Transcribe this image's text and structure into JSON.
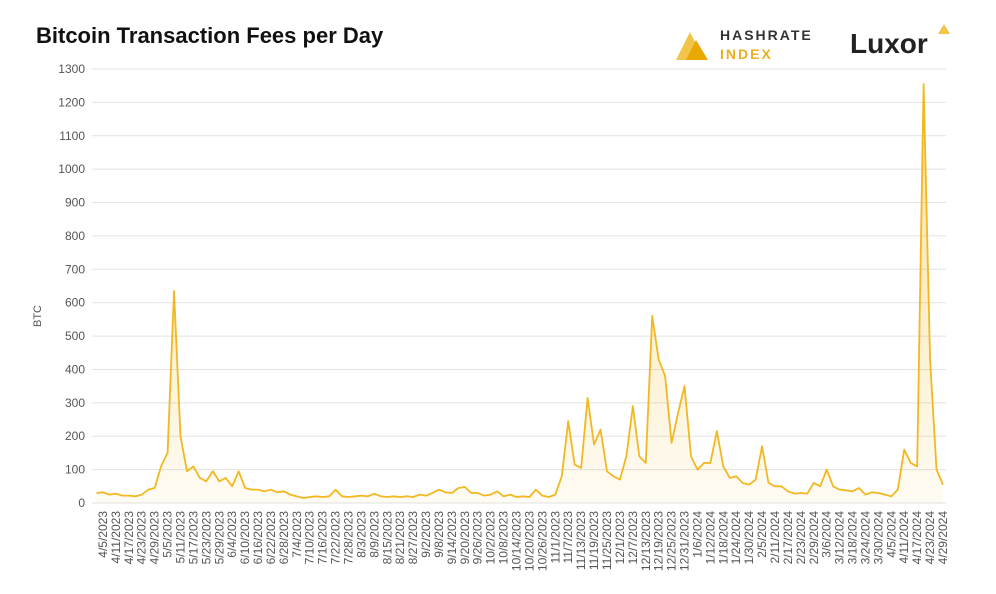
{
  "chart_data": {
    "type": "line",
    "title": "Bitcoin Transaction Fees per Day",
    "y_label": "BTC",
    "brand": {
      "index_top": "HASHRATE",
      "index_bottom": "INDEX",
      "company": "Luxor"
    },
    "color": "#f2b821",
    "grid": true,
    "ylim": [
      0,
      1300
    ],
    "yticks": [
      0,
      100,
      200,
      300,
      400,
      500,
      600,
      700,
      800,
      900,
      1000,
      1100,
      1200,
      1300
    ],
    "categories": [
      null,
      "4/5/2023",
      null,
      "4/11/2023",
      null,
      "4/17/2023",
      null,
      "4/23/2023",
      null,
      "4/29/2023",
      null,
      "5/5/2023",
      null,
      "5/11/2023",
      null,
      "5/17/2023",
      null,
      "5/23/2023",
      null,
      "5/29/2023",
      null,
      "6/4/2023",
      null,
      "6/10/2023",
      null,
      "6/16/2023",
      null,
      "6/22/2023",
      null,
      "6/28/2023",
      null,
      "7/4/2023",
      null,
      "7/10/2023",
      null,
      "7/16/2023",
      null,
      "7/22/2023",
      null,
      "7/28/2023",
      null,
      "8/3/2023",
      null,
      "8/9/2023",
      null,
      "8/15/2023",
      null,
      "8/21/2023",
      null,
      "8/27/2023",
      null,
      "9/2/2023",
      null,
      "9/8/2023",
      null,
      "9/14/2023",
      null,
      "9/20/2023",
      null,
      "9/26/2023",
      null,
      "10/2/2023",
      null,
      "10/8/2023",
      null,
      "10/14/2023",
      null,
      "10/20/2023",
      null,
      "10/26/2023",
      null,
      "11/1/2023",
      null,
      "11/7/2023",
      null,
      "11/13/2023",
      null,
      "11/19/2023",
      null,
      "11/25/2023",
      null,
      "12/1/2023",
      null,
      "12/7/2023",
      null,
      "12/13/2023",
      null,
      "12/19/2023",
      null,
      "12/25/2023",
      null,
      "12/31/2023",
      null,
      "1/6/2024",
      null,
      "1/12/2024",
      null,
      "1/18/2024",
      null,
      "1/24/2024",
      null,
      "1/30/2024",
      null,
      "2/5/2024",
      null,
      "2/11/2024",
      null,
      "2/17/2024",
      null,
      "2/23/2024",
      null,
      "2/29/2024",
      null,
      "3/6/2024",
      null,
      "3/12/2024",
      null,
      "3/18/2024",
      null,
      "3/24/2024",
      null,
      "3/30/2024",
      null,
      "4/5/2024",
      null,
      "4/11/2024",
      null,
      "4/17/2024",
      null,
      "4/23/2024",
      null,
      "4/29/2024"
    ],
    "values": [
      30,
      32,
      25,
      28,
      22,
      22,
      20,
      25,
      40,
      45,
      110,
      150,
      635,
      200,
      95,
      110,
      75,
      65,
      95,
      65,
      75,
      50,
      95,
      45,
      40,
      40,
      35,
      40,
      32,
      35,
      25,
      20,
      15,
      18,
      20,
      18,
      20,
      40,
      20,
      18,
      20,
      22,
      20,
      28,
      20,
      18,
      20,
      18,
      20,
      18,
      25,
      22,
      30,
      40,
      32,
      30,
      45,
      48,
      30,
      30,
      22,
      25,
      35,
      20,
      25,
      18,
      20,
      18,
      40,
      22,
      18,
      25,
      80,
      245,
      115,
      105,
      315,
      175,
      220,
      95,
      80,
      70,
      140,
      290,
      140,
      120,
      560,
      430,
      380,
      180,
      270,
      350,
      140,
      100,
      120,
      120,
      215,
      110,
      75,
      80,
      60,
      55,
      70,
      170,
      60,
      50,
      50,
      35,
      28,
      30,
      28,
      60,
      50,
      100,
      50,
      40,
      38,
      35,
      45,
      25,
      32,
      30,
      25,
      20,
      40,
      160,
      120,
      110,
      1255,
      430,
      100,
      55
    ]
  }
}
